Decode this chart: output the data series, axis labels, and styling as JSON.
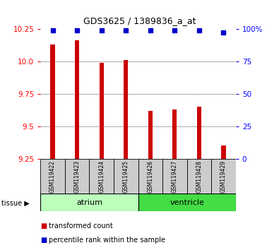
{
  "title": "GDS3625 / 1389836_a_at",
  "samples": [
    "GSM119422",
    "GSM119423",
    "GSM119424",
    "GSM119425",
    "GSM119426",
    "GSM119427",
    "GSM119428",
    "GSM119429"
  ],
  "red_values": [
    10.13,
    10.16,
    9.99,
    10.01,
    9.62,
    9.63,
    9.65,
    9.35
  ],
  "blue_values": [
    99,
    99,
    99,
    99,
    99,
    99,
    99,
    97
  ],
  "ylim_left": [
    9.25,
    10.25
  ],
  "ylim_right": [
    0,
    100
  ],
  "yticks_left": [
    9.25,
    9.5,
    9.75,
    10.0,
    10.25
  ],
  "yticks_right": [
    0,
    25,
    50,
    75,
    100
  ],
  "groups": [
    {
      "label": "atrium",
      "start": 0,
      "end": 4,
      "color": "#bbffbb"
    },
    {
      "label": "ventricle",
      "start": 4,
      "end": 8,
      "color": "#44dd44"
    }
  ],
  "bar_color": "#cc0000",
  "dot_color": "#0000cc",
  "bar_bottom": 9.25,
  "bar_width": 0.18,
  "grid_color": "#000000",
  "tissue_label": "tissue",
  "legend_red": "transformed count",
  "legend_blue": "percentile rank within the sample"
}
